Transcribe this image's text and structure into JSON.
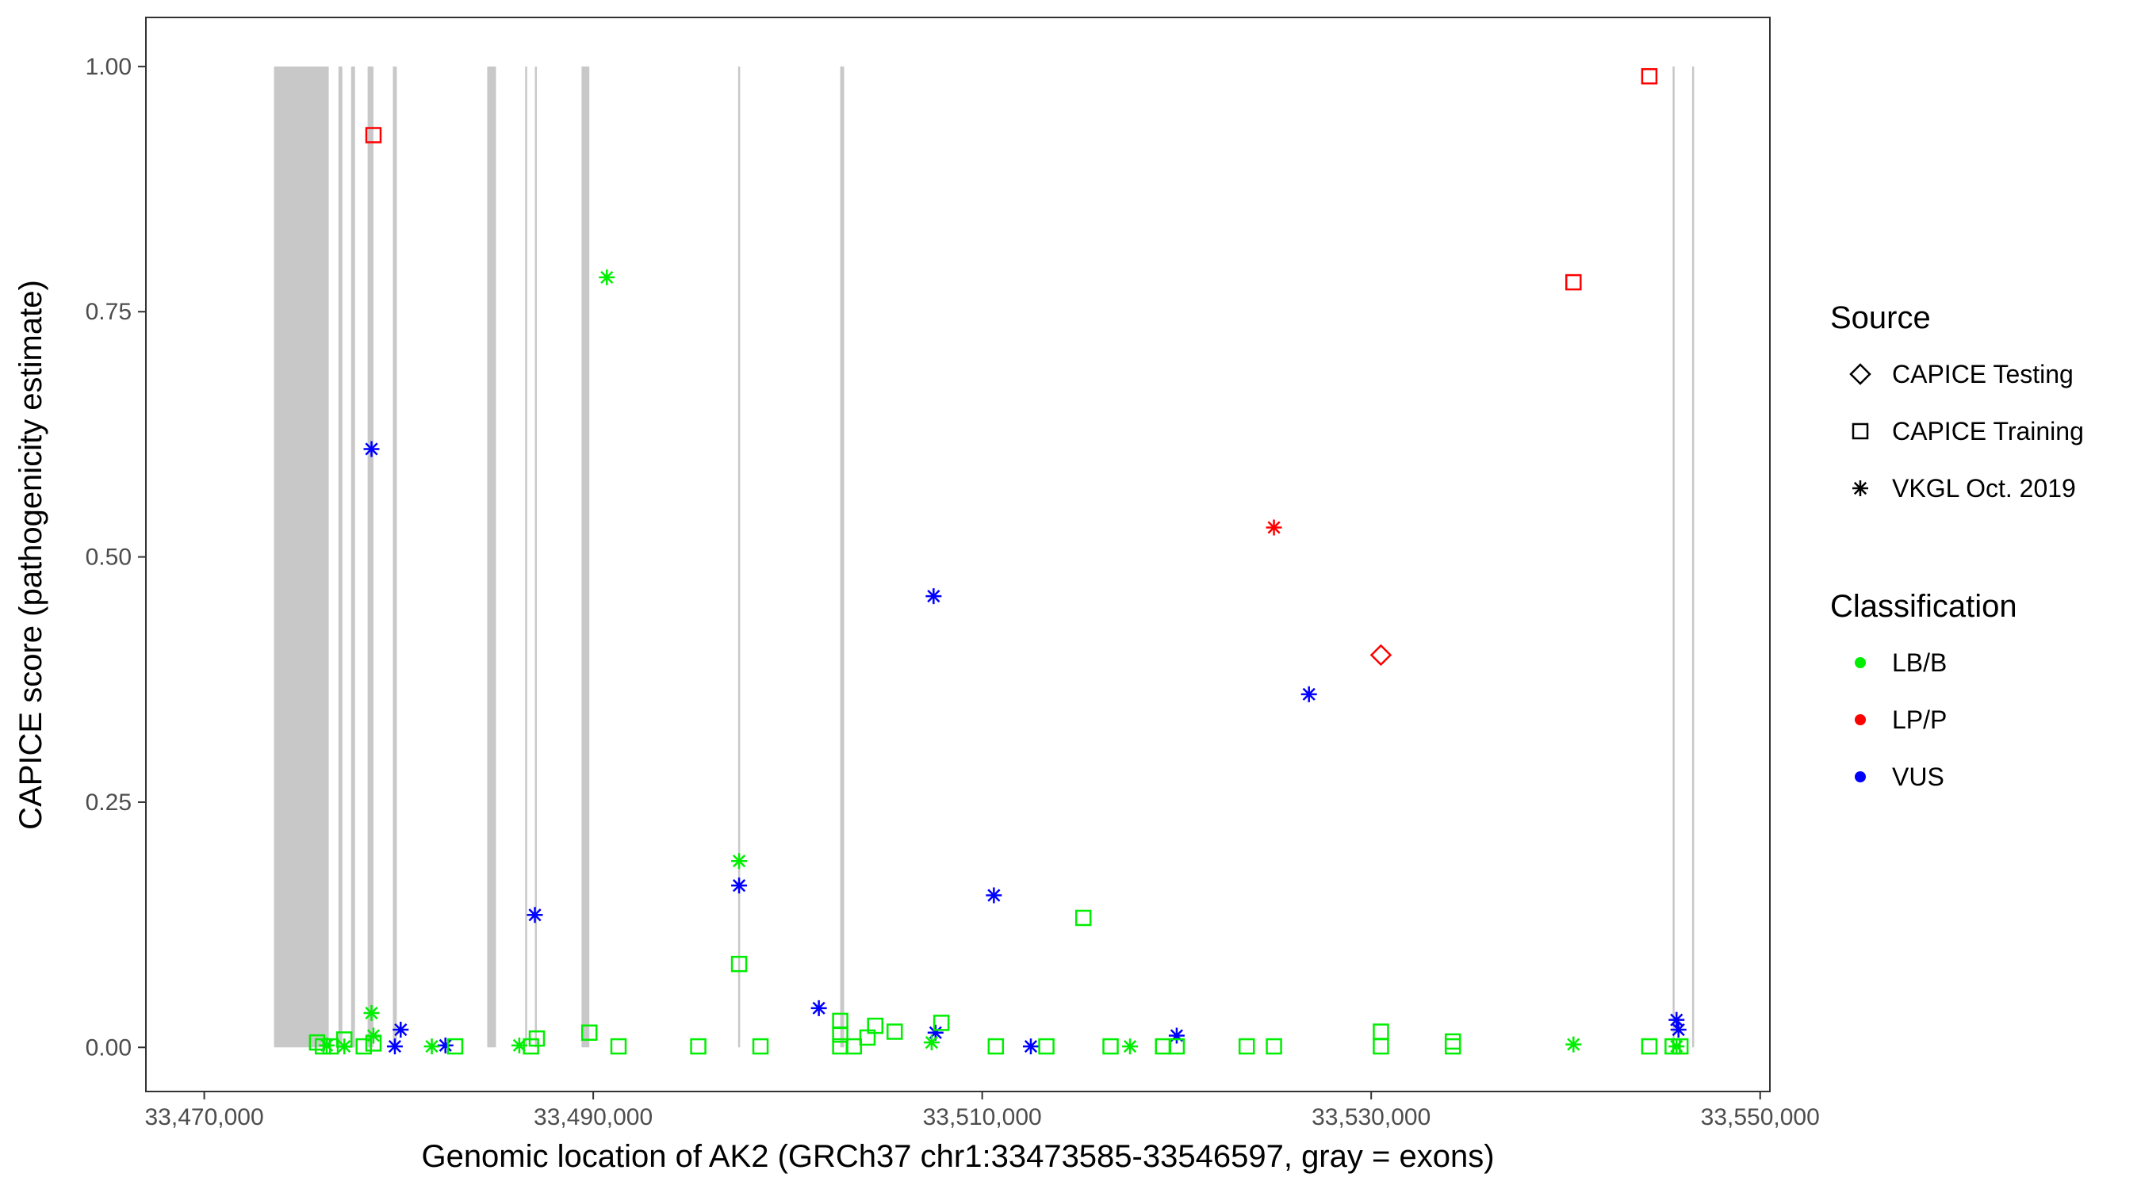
{
  "chart_data": {
    "type": "scatter",
    "title": "",
    "xlabel": "Genomic location of AK2 (GRCh37 chr1:33473585-33546597, gray = exons)",
    "ylabel": "CAPICE score (pathogenicity estimate)",
    "xlim": [
      33467000,
      33550500
    ],
    "ylim": [
      -0.045,
      1.05
    ],
    "x_ticks": [
      33470000,
      33490000,
      33510000,
      33530000,
      33550000
    ],
    "x_tick_labels": [
      "33,470,000",
      "33,490,000",
      "33,510,000",
      "33,530,000",
      "33,550,000"
    ],
    "y_ticks": [
      0,
      0.25,
      0.5,
      0.75,
      1.0
    ],
    "y_tick_labels": [
      "0.00",
      "0.25",
      "0.50",
      "0.75",
      "1.00"
    ],
    "grid": false,
    "colors": {
      "LB/B": "#00ee00",
      "LP/P": "#ff0000",
      "VUS": "#0000ff",
      "exon": "#c8c8c8"
    },
    "exons": [
      [
        33473585,
        33476400
      ],
      [
        33476900,
        33477100
      ],
      [
        33477550,
        33477750
      ],
      [
        33478400,
        33478700
      ],
      [
        33479700,
        33479900
      ],
      [
        33484550,
        33485000
      ],
      [
        33486500,
        33486600
      ],
      [
        33487000,
        33487100
      ],
      [
        33489400,
        33489800
      ],
      [
        33497450,
        33497500
      ],
      [
        33502700,
        33502900
      ],
      [
        33545500,
        33545600
      ],
      [
        33546500,
        33546597
      ]
    ],
    "legend": {
      "position": "right",
      "source_title": "Source",
      "source_items": [
        {
          "label": "CAPICE Testing",
          "shape": "diamond"
        },
        {
          "label": "CAPICE Training",
          "shape": "square"
        },
        {
          "label": "VKGL Oct. 2019",
          "shape": "star"
        }
      ],
      "class_title": "Classification",
      "class_items": [
        {
          "label": "LB/B",
          "color": "#00ee00"
        },
        {
          "label": "LP/P",
          "color": "#ff0000"
        },
        {
          "label": "VUS",
          "color": "#0000ff"
        }
      ]
    },
    "points": [
      {
        "x": 33478700,
        "y": 0.93,
        "source": "CAPICE Training",
        "class": "LP/P"
      },
      {
        "x": 33544300,
        "y": 0.99,
        "source": "CAPICE Training",
        "class": "LP/P"
      },
      {
        "x": 33540400,
        "y": 0.78,
        "source": "CAPICE Training",
        "class": "LP/P"
      },
      {
        "x": 33525000,
        "y": 0.53,
        "source": "VKGL Oct. 2019",
        "class": "LP/P"
      },
      {
        "x": 33530500,
        "y": 0.4,
        "source": "CAPICE Testing",
        "class": "LP/P"
      },
      {
        "x": 33478600,
        "y": 0.61,
        "source": "VKGL Oct. 2019",
        "class": "VUS"
      },
      {
        "x": 33507500,
        "y": 0.46,
        "source": "VKGL Oct. 2019",
        "class": "VUS"
      },
      {
        "x": 33526800,
        "y": 0.36,
        "source": "VKGL Oct. 2019",
        "class": "VUS"
      },
      {
        "x": 33510600,
        "y": 0.155,
        "source": "VKGL Oct. 2019",
        "class": "VUS"
      },
      {
        "x": 33497500,
        "y": 0.165,
        "source": "VKGL Oct. 2019",
        "class": "VUS"
      },
      {
        "x": 33487000,
        "y": 0.135,
        "source": "VKGL Oct. 2019",
        "class": "VUS"
      },
      {
        "x": 33501600,
        "y": 0.04,
        "source": "VKGL Oct. 2019",
        "class": "VUS"
      },
      {
        "x": 33480100,
        "y": 0.018,
        "source": "VKGL Oct. 2019",
        "class": "VUS"
      },
      {
        "x": 33479800,
        "y": 0.001,
        "source": "VKGL Oct. 2019",
        "class": "VUS"
      },
      {
        "x": 33482400,
        "y": 0.002,
        "source": "VKGL Oct. 2019",
        "class": "VUS"
      },
      {
        "x": 33507600,
        "y": 0.015,
        "source": "VKGL Oct. 2019",
        "class": "VUS"
      },
      {
        "x": 33512500,
        "y": 0.001,
        "source": "VKGL Oct. 2019",
        "class": "VUS"
      },
      {
        "x": 33520000,
        "y": 0.012,
        "source": "VKGL Oct. 2019",
        "class": "VUS"
      },
      {
        "x": 33545700,
        "y": 0.028,
        "source": "VKGL Oct. 2019",
        "class": "VUS"
      },
      {
        "x": 33545800,
        "y": 0.018,
        "source": "VKGL Oct. 2019",
        "class": "VUS"
      },
      {
        "x": 33490700,
        "y": 0.785,
        "source": "VKGL Oct. 2019",
        "class": "LB/B"
      },
      {
        "x": 33497500,
        "y": 0.19,
        "source": "VKGL Oct. 2019",
        "class": "LB/B"
      },
      {
        "x": 33478600,
        "y": 0.035,
        "source": "VKGL Oct. 2019",
        "class": "LB/B"
      },
      {
        "x": 33478700,
        "y": 0.012,
        "source": "VKGL Oct. 2019",
        "class": "LB/B"
      },
      {
        "x": 33476300,
        "y": 0.002,
        "source": "VKGL Oct. 2019",
        "class": "LB/B"
      },
      {
        "x": 33477200,
        "y": 0.001,
        "source": "VKGL Oct. 2019",
        "class": "LB/B"
      },
      {
        "x": 33481700,
        "y": 0.001,
        "source": "VKGL Oct. 2019",
        "class": "LB/B"
      },
      {
        "x": 33486200,
        "y": 0.002,
        "source": "VKGL Oct. 2019",
        "class": "LB/B"
      },
      {
        "x": 33507400,
        "y": 0.005,
        "source": "VKGL Oct. 2019",
        "class": "LB/B"
      },
      {
        "x": 33517600,
        "y": 0.001,
        "source": "VKGL Oct. 2019",
        "class": "LB/B"
      },
      {
        "x": 33540400,
        "y": 0.003,
        "source": "VKGL Oct. 2019",
        "class": "LB/B"
      },
      {
        "x": 33545700,
        "y": 0.001,
        "source": "VKGL Oct. 2019",
        "class": "LB/B"
      },
      {
        "x": 33515200,
        "y": 0.132,
        "source": "CAPICE Training",
        "class": "LB/B"
      },
      {
        "x": 33497500,
        "y": 0.085,
        "source": "CAPICE Training",
        "class": "LB/B"
      },
      {
        "x": 33502700,
        "y": 0.027,
        "source": "CAPICE Training",
        "class": "LB/B"
      },
      {
        "x": 33502700,
        "y": 0.013,
        "source": "CAPICE Training",
        "class": "LB/B"
      },
      {
        "x": 33504500,
        "y": 0.022,
        "source": "CAPICE Training",
        "class": "LB/B"
      },
      {
        "x": 33505500,
        "y": 0.016,
        "source": "CAPICE Training",
        "class": "LB/B"
      },
      {
        "x": 33504100,
        "y": 0.01,
        "source": "CAPICE Training",
        "class": "LB/B"
      },
      {
        "x": 33507900,
        "y": 0.025,
        "source": "CAPICE Training",
        "class": "LB/B"
      },
      {
        "x": 33489800,
        "y": 0.015,
        "source": "CAPICE Training",
        "class": "LB/B"
      },
      {
        "x": 33487100,
        "y": 0.009,
        "source": "CAPICE Training",
        "class": "LB/B"
      },
      {
        "x": 33530500,
        "y": 0.016,
        "source": "CAPICE Training",
        "class": "LB/B"
      },
      {
        "x": 33534200,
        "y": 0.006,
        "source": "CAPICE Training",
        "class": "LB/B"
      },
      {
        "x": 33477200,
        "y": 0.008,
        "source": "CAPICE Training",
        "class": "LB/B"
      },
      {
        "x": 33478700,
        "y": 0.004,
        "source": "CAPICE Training",
        "class": "LB/B"
      },
      {
        "x": 33475800,
        "y": 0.005,
        "source": "CAPICE Training",
        "class": "LB/B"
      },
      {
        "x": 33476100,
        "y": 0.001,
        "source": "CAPICE Training",
        "class": "LB/B"
      },
      {
        "x": 33476500,
        "y": 0.001,
        "source": "CAPICE Training",
        "class": "LB/B"
      },
      {
        "x": 33478200,
        "y": 0.001,
        "source": "CAPICE Training",
        "class": "LB/B"
      },
      {
        "x": 33482900,
        "y": 0.001,
        "source": "CAPICE Training",
        "class": "LB/B"
      },
      {
        "x": 33486800,
        "y": 0.001,
        "source": "CAPICE Training",
        "class": "LB/B"
      },
      {
        "x": 33491300,
        "y": 0.001,
        "source": "CAPICE Training",
        "class": "LB/B"
      },
      {
        "x": 33495400,
        "y": 0.001,
        "source": "CAPICE Training",
        "class": "LB/B"
      },
      {
        "x": 33498600,
        "y": 0.001,
        "source": "CAPICE Training",
        "class": "LB/B"
      },
      {
        "x": 33502700,
        "y": 0.001,
        "source": "CAPICE Training",
        "class": "LB/B"
      },
      {
        "x": 33503400,
        "y": 0.001,
        "source": "CAPICE Training",
        "class": "LB/B"
      },
      {
        "x": 33510700,
        "y": 0.001,
        "source": "CAPICE Training",
        "class": "LB/B"
      },
      {
        "x": 33513300,
        "y": 0.001,
        "source": "CAPICE Training",
        "class": "LB/B"
      },
      {
        "x": 33516600,
        "y": 0.001,
        "source": "CAPICE Training",
        "class": "LB/B"
      },
      {
        "x": 33519300,
        "y": 0.001,
        "source": "CAPICE Training",
        "class": "LB/B"
      },
      {
        "x": 33520000,
        "y": 0.001,
        "source": "CAPICE Training",
        "class": "LB/B"
      },
      {
        "x": 33523600,
        "y": 0.001,
        "source": "CAPICE Training",
        "class": "LB/B"
      },
      {
        "x": 33525000,
        "y": 0.001,
        "source": "CAPICE Training",
        "class": "LB/B"
      },
      {
        "x": 33530500,
        "y": 0.001,
        "source": "CAPICE Training",
        "class": "LB/B"
      },
      {
        "x": 33534200,
        "y": 0.001,
        "source": "CAPICE Training",
        "class": "LB/B"
      },
      {
        "x": 33544300,
        "y": 0.001,
        "source": "CAPICE Training",
        "class": "LB/B"
      },
      {
        "x": 33545500,
        "y": 0.001,
        "source": "CAPICE Training",
        "class": "LB/B"
      },
      {
        "x": 33545900,
        "y": 0.001,
        "source": "CAPICE Training",
        "class": "LB/B"
      }
    ]
  }
}
